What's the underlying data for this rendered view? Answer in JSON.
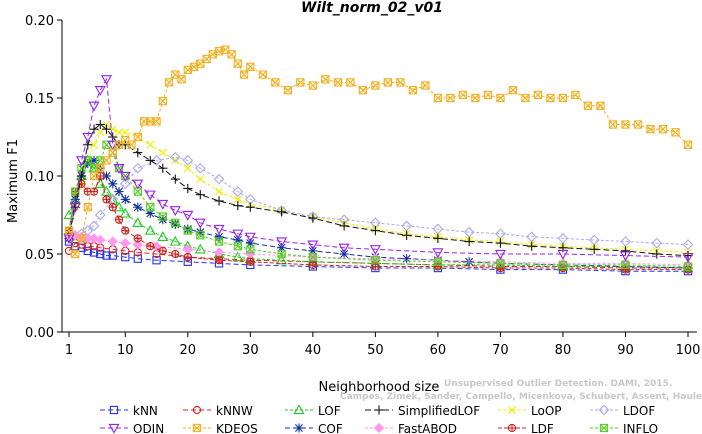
{
  "chart_data": {
    "type": "line",
    "title": "Wilt_norm_02_v01",
    "xlabel": "Neighborhood size",
    "ylabel": "Maximum F1",
    "xlim": [
      1,
      100
    ],
    "ylim": [
      0,
      0.2
    ],
    "xticks": [
      1,
      10,
      20,
      30,
      40,
      50,
      60,
      70,
      80,
      90,
      100
    ],
    "yticks": [
      "0.00",
      "0.05",
      "0.10",
      "0.15",
      "0.20"
    ],
    "grid": false,
    "legend_position": "bottom",
    "series": [
      {
        "name": "kNN",
        "color": "#2233ee",
        "marker": "square-open",
        "dash": "5,3",
        "x": [
          1,
          2,
          3,
          4,
          5,
          6,
          7,
          8,
          10,
          12,
          15,
          20,
          25,
          30,
          40,
          50,
          60,
          70,
          80,
          90,
          100
        ],
        "y": [
          0.058,
          0.055,
          0.054,
          0.052,
          0.051,
          0.05,
          0.049,
          0.049,
          0.048,
          0.047,
          0.046,
          0.045,
          0.044,
          0.043,
          0.042,
          0.041,
          0.041,
          0.04,
          0.04,
          0.039,
          0.039
        ]
      },
      {
        "name": "kNNW",
        "color": "#dd2222",
        "marker": "circle-open",
        "dash": "5,3",
        "x": [
          1,
          2,
          3,
          4,
          5,
          6,
          8,
          10,
          12,
          15,
          20,
          25,
          30,
          40,
          50,
          60,
          70,
          80,
          90,
          100
        ],
        "y": [
          0.052,
          0.057,
          0.056,
          0.055,
          0.055,
          0.054,
          0.053,
          0.052,
          0.051,
          0.05,
          0.048,
          0.047,
          0.046,
          0.045,
          0.044,
          0.043,
          0.042,
          0.042,
          0.041,
          0.041
        ]
      },
      {
        "name": "LOF",
        "color": "#22cc22",
        "marker": "triangle-open",
        "dash": "3,2",
        "x": [
          1,
          2,
          3,
          4,
          5,
          6,
          7,
          8,
          9,
          10,
          12,
          14,
          16,
          18,
          20,
          22,
          25,
          28,
          30,
          35,
          40,
          50,
          60,
          70,
          80,
          90,
          100
        ],
        "y": [
          0.075,
          0.085,
          0.1,
          0.11,
          0.105,
          0.095,
          0.09,
          0.085,
          0.08,
          0.076,
          0.07,
          0.065,
          0.061,
          0.058,
          0.055,
          0.053,
          0.05,
          0.048,
          0.047,
          0.046,
          0.045,
          0.044,
          0.043,
          0.043,
          0.042,
          0.042,
          0.041
        ]
      },
      {
        "name": "SimplifiedLOF",
        "color": "#111111",
        "marker": "plus",
        "dash": "6,3",
        "x": [
          1,
          2,
          3,
          4,
          5,
          6,
          7,
          8,
          9,
          10,
          12,
          14,
          16,
          18,
          20,
          22,
          25,
          28,
          30,
          35,
          40,
          45,
          50,
          55,
          60,
          65,
          70,
          75,
          80,
          85,
          90,
          95,
          100
        ],
        "y": [
          0.063,
          0.08,
          0.1,
          0.12,
          0.13,
          0.133,
          0.13,
          0.125,
          0.12,
          0.12,
          0.115,
          0.11,
          0.105,
          0.098,
          0.092,
          0.088,
          0.084,
          0.081,
          0.08,
          0.077,
          0.073,
          0.068,
          0.065,
          0.062,
          0.06,
          0.058,
          0.057,
          0.055,
          0.054,
          0.053,
          0.052,
          0.05,
          0.049
        ]
      },
      {
        "name": "LoOP",
        "color": "#eeee00",
        "marker": "x",
        "dash": "3,2",
        "x": [
          1,
          2,
          3,
          4,
          5,
          6,
          7,
          8,
          9,
          10,
          12,
          14,
          16,
          18,
          20,
          22,
          25,
          28,
          30,
          35,
          40,
          45,
          50,
          55,
          60,
          65,
          70,
          75,
          80,
          85,
          90,
          95,
          100
        ],
        "y": [
          0.06,
          0.08,
          0.095,
          0.11,
          0.12,
          0.128,
          0.133,
          0.13,
          0.128,
          0.128,
          0.125,
          0.12,
          0.115,
          0.11,
          0.105,
          0.098,
          0.09,
          0.085,
          0.082,
          0.078,
          0.074,
          0.07,
          0.066,
          0.063,
          0.061,
          0.059,
          0.058,
          0.056,
          0.055,
          0.054,
          0.053,
          0.052,
          0.051
        ]
      },
      {
        "name": "LDOF",
        "color": "#aaaaee",
        "marker": "diamond-open",
        "dash": "3,2",
        "x": [
          1,
          2,
          3,
          4,
          5,
          6,
          8,
          10,
          12,
          15,
          18,
          20,
          22,
          25,
          28,
          30,
          35,
          40,
          45,
          50,
          55,
          60,
          65,
          70,
          75,
          80,
          85,
          90,
          95,
          100
        ],
        "y": [
          0.062,
          0.062,
          0.063,
          0.065,
          0.068,
          0.075,
          0.085,
          0.095,
          0.105,
          0.11,
          0.112,
          0.11,
          0.105,
          0.098,
          0.09,
          0.085,
          0.078,
          0.074,
          0.072,
          0.07,
          0.068,
          0.066,
          0.064,
          0.063,
          0.061,
          0.06,
          0.059,
          0.058,
          0.057,
          0.056
        ]
      },
      {
        "name": "ODIN",
        "color": "#9922ee",
        "marker": "triangle-down-open",
        "dash": "5,3",
        "x": [
          1,
          2,
          3,
          4,
          5,
          6,
          7,
          8,
          9,
          10,
          12,
          14,
          16,
          18,
          20,
          22,
          25,
          28,
          30,
          35,
          40,
          45,
          50,
          60,
          70,
          80,
          90,
          100
        ],
        "y": [
          0.06,
          0.08,
          0.11,
          0.125,
          0.145,
          0.155,
          0.162,
          0.12,
          0.105,
          0.1,
          0.095,
          0.088,
          0.082,
          0.078,
          0.075,
          0.07,
          0.066,
          0.063,
          0.061,
          0.058,
          0.056,
          0.054,
          0.053,
          0.051,
          0.05,
          0.05,
          0.049,
          0.048
        ]
      },
      {
        "name": "KDEOS",
        "color": "#f0b020",
        "marker": "square-x",
        "dash": "3,2",
        "x": [
          1,
          2,
          3,
          4,
          5,
          6,
          7,
          8,
          9,
          10,
          11,
          12,
          13,
          14,
          15,
          16,
          17,
          18,
          19,
          20,
          21,
          22,
          23,
          24,
          25,
          26,
          27,
          28,
          29,
          30,
          32,
          34,
          36,
          38,
          40,
          42,
          44,
          46,
          48,
          50,
          52,
          54,
          56,
          58,
          60,
          62,
          64,
          66,
          68,
          70,
          72,
          74,
          76,
          78,
          80,
          82,
          84,
          86,
          88,
          90,
          92,
          94,
          96,
          98,
          100
        ],
        "y": [
          0.065,
          0.05,
          0.06,
          0.08,
          0.1,
          0.105,
          0.11,
          0.115,
          0.12,
          0.123,
          0.12,
          0.125,
          0.135,
          0.135,
          0.135,
          0.148,
          0.16,
          0.165,
          0.162,
          0.168,
          0.17,
          0.172,
          0.175,
          0.178,
          0.18,
          0.181,
          0.178,
          0.172,
          0.165,
          0.17,
          0.165,
          0.16,
          0.155,
          0.16,
          0.158,
          0.162,
          0.16,
          0.16,
          0.155,
          0.158,
          0.16,
          0.16,
          0.155,
          0.158,
          0.15,
          0.15,
          0.152,
          0.15,
          0.152,
          0.15,
          0.155,
          0.15,
          0.152,
          0.15,
          0.15,
          0.152,
          0.145,
          0.145,
          0.133,
          0.133,
          0.133,
          0.13,
          0.13,
          0.128,
          0.12
        ]
      },
      {
        "name": "COF",
        "color": "#113399",
        "marker": "asterisk",
        "dash": "5,3",
        "x": [
          1,
          2,
          3,
          4,
          5,
          6,
          7,
          8,
          9,
          10,
          12,
          14,
          16,
          18,
          20,
          22,
          25,
          28,
          30,
          35,
          40,
          45,
          50,
          55,
          60,
          65,
          70,
          80,
          90,
          100
        ],
        "y": [
          0.06,
          0.085,
          0.1,
          0.108,
          0.11,
          0.105,
          0.1,
          0.095,
          0.09,
          0.085,
          0.08,
          0.076,
          0.072,
          0.069,
          0.066,
          0.064,
          0.061,
          0.059,
          0.057,
          0.054,
          0.052,
          0.05,
          0.048,
          0.047,
          0.046,
          0.045,
          0.044,
          0.043,
          0.042,
          0.041
        ]
      },
      {
        "name": "FastABOD",
        "color": "#ff99ee",
        "marker": "diamond-filled",
        "dash": "3,2",
        "x": [
          1,
          2,
          3,
          4,
          5,
          6,
          8,
          10,
          12,
          15,
          20,
          25,
          30,
          40,
          50,
          60,
          70,
          80,
          90,
          100
        ],
        "y": [
          0.062,
          0.062,
          0.061,
          0.06,
          0.06,
          0.059,
          0.058,
          0.057,
          0.056,
          0.055,
          0.053,
          0.051,
          0.05,
          0.048,
          0.047,
          0.046,
          0.045,
          0.044,
          0.044,
          0.043
        ]
      },
      {
        "name": "LDF",
        "color": "#cc2222",
        "marker": "circle-plus",
        "dash": "4,2",
        "x": [
          1,
          2,
          3,
          4,
          5,
          6,
          7,
          8,
          9,
          10,
          12,
          14,
          16,
          18,
          20,
          25,
          30,
          40,
          50,
          60,
          70,
          80,
          90,
          100
        ],
        "y": [
          0.065,
          0.09,
          0.095,
          0.09,
          0.09,
          0.1,
          0.085,
          0.08,
          0.072,
          0.065,
          0.06,
          0.055,
          0.052,
          0.05,
          0.048,
          0.046,
          0.045,
          0.043,
          0.042,
          0.042,
          0.041,
          0.041,
          0.04,
          0.04
        ]
      },
      {
        "name": "INFLO",
        "color": "#55cc22",
        "marker": "square-x",
        "dash": "3,2",
        "x": [
          1,
          2,
          3,
          4,
          5,
          6,
          7,
          8,
          9,
          10,
          12,
          14,
          16,
          18,
          20,
          22,
          25,
          28,
          30,
          35,
          40,
          50,
          60,
          70,
          80,
          90,
          100
        ],
        "y": [
          0.065,
          0.09,
          0.105,
          0.11,
          0.105,
          0.11,
          0.12,
          0.115,
          0.105,
          0.1,
          0.09,
          0.08,
          0.074,
          0.07,
          0.065,
          0.062,
          0.058,
          0.055,
          0.053,
          0.05,
          0.048,
          0.046,
          0.045,
          0.044,
          0.043,
          0.043,
          0.042
        ]
      }
    ],
    "legend_layout": [
      [
        "kNN",
        "kNNW",
        "LOF",
        "SimplifiedLOF",
        "LoOP",
        "LDOF"
      ],
      [
        "ODIN",
        "KDEOS",
        "COF",
        "FastABOD",
        "LDF",
        "INFLO"
      ]
    ],
    "watermark": [
      "Unsupervised Outlier Detection. DAMI, 2015.",
      "Campos, Zimek, Sander, Campello, Micenkova, Schubert, Assent, Houle"
    ]
  }
}
